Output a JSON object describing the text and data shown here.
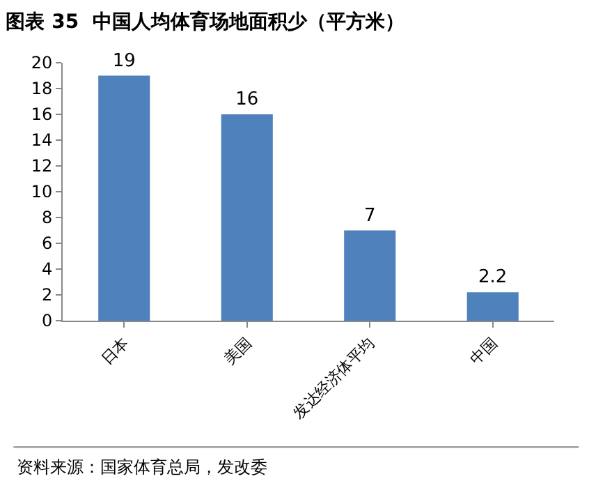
{
  "chart_data": {
    "type": "bar",
    "title": "图表 35  中国人均体育场地面积少（平方米）",
    "categories": [
      "日本",
      "美国",
      "发达经济体平均",
      "中国"
    ],
    "values": [
      19,
      16,
      7,
      2.2
    ],
    "color": "#4f81bd",
    "ylim": [
      0,
      20
    ],
    "yticks": [
      0,
      2,
      4,
      6,
      8,
      10,
      12,
      14,
      16,
      18,
      20
    ],
    "grid": false,
    "data_labels": true,
    "annotations": [
      "资料来源：国家体育总局，发改委"
    ]
  }
}
